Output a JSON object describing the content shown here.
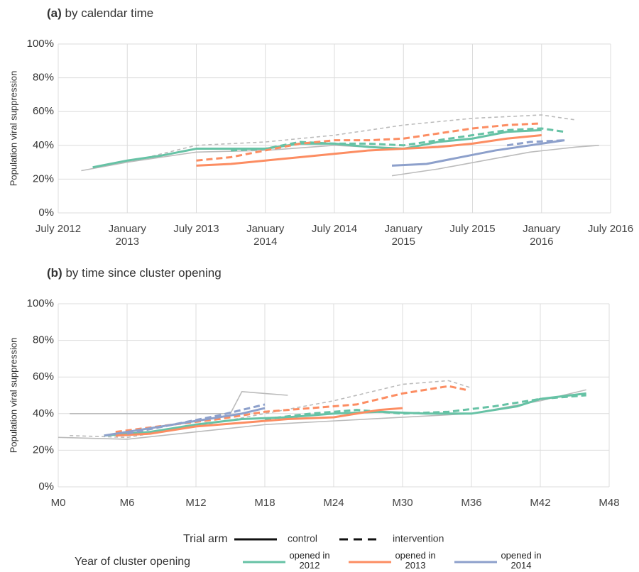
{
  "chart_data": [
    {
      "type": "line",
      "tag": "(a)",
      "title": "by calendar time",
      "ylabel": "Population viral suppression",
      "grid": true,
      "xlim": [
        "2012-07",
        "2016-07"
      ],
      "xticks": [
        {
          "value": "2012-07",
          "label": "July 2012"
        },
        {
          "value": "2013-01",
          "label": "January 2013"
        },
        {
          "value": "2013-07",
          "label": "July 2013"
        },
        {
          "value": "2014-01",
          "label": "January 2014"
        },
        {
          "value": "2014-07",
          "label": "July 2014"
        },
        {
          "value": "2015-01",
          "label": "January 2015"
        },
        {
          "value": "2015-07",
          "label": "July 2015"
        },
        {
          "value": "2016-01",
          "label": "January 2016"
        },
        {
          "value": "2016-07",
          "label": "July 2016"
        }
      ],
      "ylim": [
        0,
        100
      ],
      "yticks": [
        {
          "value": 0,
          "label": "0%"
        },
        {
          "value": 20,
          "label": "20%"
        },
        {
          "value": 40,
          "label": "40%"
        },
        {
          "value": 60,
          "label": "60%"
        },
        {
          "value": 80,
          "label": "80%"
        },
        {
          "value": 100,
          "label": "100%"
        }
      ],
      "series": [
        {
          "color": "#bbbbbb",
          "linestyle": "dashed",
          "x": [
            "2013-01",
            "2013-07",
            "2014-01",
            "2014-07",
            "2015-01",
            "2015-07",
            "2016-01",
            "2016-04"
          ],
          "values": [
            30,
            40,
            42,
            46,
            52,
            56,
            58,
            55
          ]
        },
        {
          "color": "#bbbbbb",
          "linestyle": "solid",
          "x": [
            "2014-12",
            "2015-04",
            "2015-08",
            "2015-12",
            "2016-04",
            "2016-06"
          ],
          "values": [
            22,
            26,
            31,
            36,
            39,
            40
          ]
        },
        {
          "color": "#bbbbbb",
          "linestyle": "solid",
          "x": [
            "2012-09",
            "2013-01",
            "2013-07",
            "2014-01",
            "2014-07",
            "2015-01"
          ],
          "values": [
            25,
            30,
            36,
            37,
            40,
            38
          ]
        },
        {
          "color": "#66c2a5",
          "linestyle": "solid",
          "x": [
            "2012-10",
            "2013-01",
            "2013-04",
            "2013-07",
            "2013-10",
            "2014-01",
            "2014-04",
            "2014-07",
            "2014-10",
            "2015-01",
            "2015-04",
            "2015-07",
            "2015-10",
            "2016-01"
          ],
          "values": [
            27,
            31,
            34,
            38,
            38,
            38,
            41,
            41,
            39,
            38,
            42,
            44,
            48,
            49
          ]
        },
        {
          "color": "#66c2a5",
          "linestyle": "dashed",
          "x": [
            "2013-10",
            "2014-01",
            "2014-04",
            "2014-07",
            "2014-10",
            "2015-01",
            "2015-04",
            "2015-07",
            "2015-10",
            "2016-01",
            "2016-03"
          ],
          "values": [
            37,
            38,
            42,
            41,
            41,
            40,
            43,
            46,
            49,
            50,
            48
          ]
        },
        {
          "color": "#fc8d62",
          "linestyle": "solid",
          "x": [
            "2013-07",
            "2013-10",
            "2014-01",
            "2014-04",
            "2014-07",
            "2014-10",
            "2015-01",
            "2015-04",
            "2015-07",
            "2015-10",
            "2016-01"
          ],
          "values": [
            28,
            29,
            31,
            33,
            35,
            37,
            38,
            39,
            41,
            44,
            46
          ]
        },
        {
          "color": "#fc8d62",
          "linestyle": "dashed",
          "x": [
            "2013-07",
            "2013-10",
            "2014-01",
            "2014-04",
            "2014-07",
            "2014-10",
            "2015-01",
            "2015-04",
            "2015-07",
            "2015-10",
            "2016-01"
          ],
          "values": [
            31,
            33,
            37,
            41,
            43,
            43,
            44,
            47,
            50,
            52,
            53
          ]
        },
        {
          "color": "#8da0cb",
          "linestyle": "solid",
          "x": [
            "2014-12",
            "2015-03",
            "2015-06",
            "2015-09",
            "2015-12",
            "2016-03"
          ],
          "values": [
            28,
            29,
            33,
            37,
            40,
            43
          ]
        },
        {
          "color": "#8da0cb",
          "linestyle": "dashed",
          "x": [
            "2015-10",
            "2015-12",
            "2016-03"
          ],
          "values": [
            40,
            42,
            43
          ]
        }
      ]
    },
    {
      "type": "line",
      "tag": "(b)",
      "title": "by time since cluster opening",
      "ylabel": "Population viral suppression",
      "grid": true,
      "xlim": [
        0,
        48
      ],
      "xticks": [
        {
          "value": 0,
          "label": "M0"
        },
        {
          "value": 6,
          "label": "M6"
        },
        {
          "value": 12,
          "label": "M12"
        },
        {
          "value": 18,
          "label": "M18"
        },
        {
          "value": 24,
          "label": "M24"
        },
        {
          "value": 30,
          "label": "M30"
        },
        {
          "value": 36,
          "label": "M36"
        },
        {
          "value": 42,
          "label": "M42"
        },
        {
          "value": 48,
          "label": "M48"
        }
      ],
      "ylim": [
        0,
        100
      ],
      "yticks": [
        {
          "value": 0,
          "label": "0%"
        },
        {
          "value": 20,
          "label": "20%"
        },
        {
          "value": 40,
          "label": "40%"
        },
        {
          "value": 60,
          "label": "60%"
        },
        {
          "value": 80,
          "label": "80%"
        },
        {
          "value": 100,
          "label": "100%"
        }
      ],
      "series": [
        {
          "color": "#bbbbbb",
          "linestyle": "solid",
          "x": [
            1,
            6,
            12,
            15,
            16,
            20
          ],
          "values": [
            40,
            40,
            40,
            40,
            52,
            50
          ]
        },
        {
          "color": "#bbbbbb",
          "linestyle": "dashed",
          "x": [
            1,
            6,
            12,
            18,
            24,
            30,
            34,
            36
          ],
          "values": [
            28,
            27,
            33,
            40,
            47,
            56,
            58,
            54
          ]
        },
        {
          "color": "#bbbbbb",
          "linestyle": "solid",
          "x": [
            0,
            6,
            12,
            18,
            24,
            30,
            36,
            42,
            46
          ],
          "values": [
            27,
            26,
            30,
            34,
            36,
            38,
            40,
            47,
            53
          ]
        },
        {
          "color": "#66c2a5",
          "linestyle": "solid",
          "x": [
            4,
            8,
            12,
            16,
            20,
            24,
            28,
            32,
            36,
            40,
            42,
            46
          ],
          "values": [
            28,
            30,
            34,
            37,
            38,
            40,
            41,
            40,
            40,
            44,
            48,
            51
          ]
        },
        {
          "color": "#66c2a5",
          "linestyle": "dashed",
          "x": [
            18,
            22,
            26,
            30,
            34,
            38,
            42,
            46
          ],
          "values": [
            37,
            40,
            42,
            40,
            41,
            44,
            48,
            50
          ]
        },
        {
          "color": "#fc8d62",
          "linestyle": "solid",
          "x": [
            5,
            8,
            12,
            16,
            20,
            24,
            28,
            30
          ],
          "values": [
            28,
            29,
            33,
            35,
            37,
            38,
            42,
            43
          ]
        },
        {
          "color": "#fc8d62",
          "linestyle": "dashed",
          "x": [
            5,
            10,
            14,
            18,
            22,
            26,
            30,
            34,
            35.5
          ],
          "values": [
            30,
            34,
            37,
            41,
            43,
            45,
            51,
            55,
            53
          ]
        },
        {
          "color": "#8da0cb",
          "linestyle": "solid",
          "x": [
            4,
            8,
            12,
            16,
            18
          ],
          "values": [
            28,
            32,
            36,
            40,
            43
          ]
        },
        {
          "color": "#8da0cb",
          "linestyle": "dashed",
          "x": [
            6,
            10,
            14,
            18
          ],
          "values": [
            29,
            34,
            39,
            45
          ]
        }
      ]
    }
  ],
  "legend": {
    "arm_title": "Trial arm",
    "arms": [
      "control",
      "intervention"
    ],
    "year_title": "Year of cluster opening",
    "years": [
      {
        "label": "opened in 2012",
        "color": "#66c2a5"
      },
      {
        "label": "opened in 2013",
        "color": "#fc8d62"
      },
      {
        "label": "opened in 2014",
        "color": "#8da0cb"
      }
    ]
  }
}
